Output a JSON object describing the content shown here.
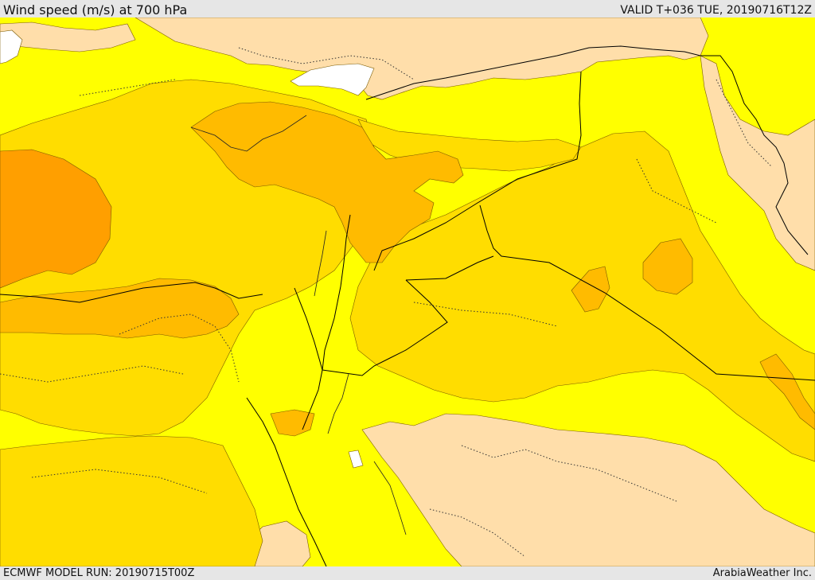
{
  "header": {
    "title": "Wind speed (m/s) at 700 hPa",
    "valid": "VALID T+036 TUE, 20190716T12Z"
  },
  "footer": {
    "model_run": "ECMWF MODEL RUN: 20190715T00Z",
    "credit": "ArabiaWeather Inc."
  },
  "colors": {
    "calm": "#ffdeaa",
    "light": "#ffff00",
    "moderate": "#ffdd00",
    "fresh": "#ffbb00",
    "strong": "#ff9f00",
    "sea_white": "#ffffff",
    "border_line": "#000000",
    "admin_line": "#333333"
  }
}
